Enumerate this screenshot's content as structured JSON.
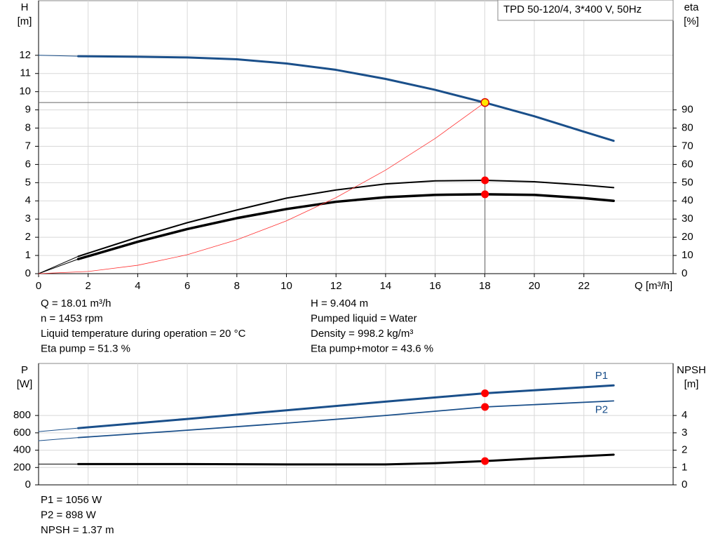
{
  "chart_data": [
    {
      "type": "line",
      "ylabel": "H",
      "yunit": "[m]",
      "y2label": "eta",
      "y2unit": "[%]",
      "xlabel": "Q [m³/h]",
      "legend_text": "TPD 50-120/4, 3*400 V, 50Hz",
      "xlim": [
        0,
        25.6
      ],
      "xticks": [
        0,
        2,
        4,
        6,
        8,
        10,
        12,
        14,
        16,
        18,
        20,
        22
      ],
      "ylim": [
        0,
        15
      ],
      "yticks": [
        0,
        1,
        2,
        3,
        4,
        5,
        6,
        7,
        8,
        9,
        10,
        11,
        12
      ],
      "y2lim": [
        0,
        150
      ],
      "y2ticks": [
        0,
        10,
        20,
        30,
        40,
        50,
        60,
        70,
        80,
        90
      ],
      "grid": true,
      "point_x": 18.01,
      "series": [
        {
          "color": "#1a4f8a",
          "width": 3,
          "point": 9.404,
          "point_color": "#ffe600",
          "x": [
            0,
            1.6,
            4,
            6,
            8,
            10,
            12,
            14,
            16,
            18,
            20,
            22,
            23.2
          ],
          "values": [
            12.0,
            11.95,
            11.92,
            11.88,
            11.78,
            11.55,
            11.2,
            10.7,
            10.1,
            9.4,
            8.65,
            7.8,
            7.3
          ]
        },
        {
          "color": "#000000",
          "width": 2,
          "axis": "y2",
          "point": 51.3,
          "point_color": "#ff0000",
          "x": [
            0,
            1.6,
            4,
            6,
            8,
            10,
            12,
            14,
            16,
            18,
            20,
            22,
            23.2
          ],
          "values": [
            0,
            9.5,
            20,
            28,
            35,
            41.5,
            46,
            49.3,
            51,
            51.3,
            50.5,
            48.7,
            47.3
          ]
        },
        {
          "color": "#000000",
          "width": 3.5,
          "axis": "y2",
          "point": 43.6,
          "point_color": "#ff0000",
          "x": [
            0,
            1.6,
            4,
            6,
            8,
            10,
            12,
            14,
            16,
            18,
            20,
            22,
            23.2
          ],
          "values": [
            0,
            8,
            17.5,
            24.5,
            30.5,
            35.5,
            39.5,
            42,
            43.3,
            43.6,
            43.3,
            41.5,
            40
          ]
        },
        {
          "color": "#ff3030",
          "width": 0.8,
          "x": [
            0,
            2,
            4,
            6,
            8,
            10,
            12,
            14,
            16,
            18
          ],
          "values": [
            0,
            0.12,
            0.46,
            1.04,
            1.86,
            2.9,
            4.18,
            5.69,
            7.43,
            9.4
          ]
        }
      ],
      "annotations": [
        [
          "Q = 18.01 m³/h",
          "n = 1453 rpm",
          "Liquid temperature during operation = 20 °C",
          "Eta pump = 51.3 %"
        ],
        [
          "H = 9.404 m",
          "Pumped liquid = Water",
          "Density = 998.2 kg/m³",
          "Eta pump+motor = 43.6 %"
        ]
      ]
    },
    {
      "type": "line",
      "ylabel": "P",
      "yunit": "[W]",
      "y2label": "NPSH",
      "y2unit": "[m]",
      "xlim": [
        0,
        25.6
      ],
      "ylim": [
        0,
        1400
      ],
      "yticks": [
        0,
        200,
        400,
        600,
        800
      ],
      "y2lim": [
        0,
        7
      ],
      "y2ticks": [
        0,
        1,
        2,
        3,
        4
      ],
      "grid": true,
      "point_x": 18.01,
      "series": [
        {
          "name": "P1",
          "color": "#1a4f8a",
          "width": 3,
          "point": 1056,
          "point_color": "#ff0000",
          "x": [
            0,
            1.6,
            6,
            10,
            14,
            18,
            23.2
          ],
          "values": [
            614,
            654,
            760,
            860,
            960,
            1056,
            1147
          ]
        },
        {
          "name": "P2",
          "color": "#1a4f8a",
          "width": 1.8,
          "point": 898,
          "point_color": "#ff0000",
          "x": [
            0,
            1.6,
            6,
            10,
            14,
            18,
            23.2
          ],
          "values": [
            509,
            545,
            630,
            712,
            800,
            898,
            968
          ]
        },
        {
          "color": "#000000",
          "width": 3,
          "axis": "y2",
          "point": 1.37,
          "point_color": "#ff0000",
          "x": [
            0,
            1.6,
            6,
            10,
            14,
            16,
            18,
            20,
            23.2
          ],
          "values": [
            1.2,
            1.2,
            1.2,
            1.18,
            1.18,
            1.25,
            1.37,
            1.52,
            1.74
          ]
        }
      ],
      "annotations": [
        [
          "P1 = 1056 W",
          "P2 = 898 W",
          "NPSH = 1.37 m"
        ]
      ]
    }
  ]
}
